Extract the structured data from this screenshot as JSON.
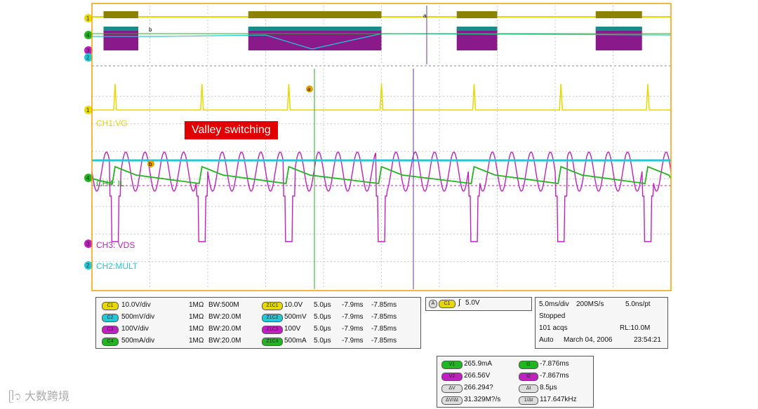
{
  "chart_data": {
    "type": "line",
    "annotation": "Valley switching",
    "cursor_labels": [
      "a",
      "b"
    ],
    "zoom_labels": [
      "a",
      "b"
    ],
    "channel_markers": [
      "1",
      "4",
      "3",
      "2"
    ],
    "channel_labels": [
      {
        "text": "CH1:VG",
        "color": "#e6d800"
      },
      {
        "text": "CH4: IL",
        "color": "#22b422"
      },
      {
        "text": "CH3: VDS",
        "color": "#c020c0"
      },
      {
        "text": "CH2:MULT",
        "color": "#20c8d8"
      }
    ],
    "colors": {
      "ch1": "#e6d800",
      "ch2": "#20c8d8",
      "ch3": "#c020c0",
      "ch4": "#22b422",
      "grid": "#c8c8c8",
      "frame": "#f0a000"
    },
    "overview_bursts": [
      {
        "start": 0.02,
        "end": 0.08
      },
      {
        "start": 0.27,
        "end": 0.5
      },
      {
        "start": 0.63,
        "end": 0.7
      },
      {
        "start": 0.87,
        "end": 0.95
      }
    ],
    "vg_pulse_positions": [
      0.04,
      0.19,
      0.34,
      0.5,
      0.66,
      0.81,
      0.96
    ],
    "vds_deep_valleys": [
      0.04,
      0.19,
      0.34,
      0.5,
      0.66,
      0.81,
      0.96
    ]
  },
  "channels": [
    {
      "badge": "C1",
      "badge_color": "#e6d800",
      "scale": "10.0V/div",
      "coupling": "1MΩ",
      "bw": "BW:500M",
      "zbadge": "Z1C1",
      "zscale": "10.0V",
      "ztime": "5.0μs",
      "zpos": "-7.9ms",
      "zpos2": "-7.85ms"
    },
    {
      "badge": "C2",
      "badge_color": "#20c8d8",
      "scale": "500mV/div",
      "coupling": "1MΩ",
      "bw": "BW:20.0M",
      "zbadge": "Z1C2",
      "zscale": "500mV",
      "ztime": "5.0μs",
      "zpos": "-7.9ms",
      "zpos2": "-7.85ms"
    },
    {
      "badge": "C3",
      "badge_color": "#c020c0",
      "scale": "100V/div",
      "coupling": "1MΩ",
      "bw": "BW:20.0M",
      "zbadge": "Z1C3",
      "zscale": "100V",
      "ztime": "5.0μs",
      "zpos": "-7.9ms",
      "zpos2": "-7.85ms"
    },
    {
      "badge": "C4",
      "badge_color": "#22b422",
      "scale": "500mA/div",
      "coupling": "1MΩ",
      "bw": "BW:20.0M",
      "zbadge": "Z1C4",
      "zscale": "500mA",
      "ztime": "5.0μs",
      "zpos": "-7.9ms",
      "zpos2": "-7.85ms"
    }
  ],
  "trigger": {
    "badge": "A",
    "source": "C1",
    "level": "5.0V"
  },
  "timebase": {
    "row1": [
      "5.0ms/div",
      "200MS/s",
      "5.0ns/pt"
    ],
    "status": "Stopped",
    "acqs": "101 acqs",
    "rl": "RL:10.0M",
    "mode": "Auto",
    "date": "March 04, 2006",
    "time": "23:54:21"
  },
  "cursors": [
    {
      "badge": "V1",
      "value": "265.9mA",
      "tbadge": "t1",
      "tvalue": "-7.876ms"
    },
    {
      "badge": "V2",
      "value": "266.56V",
      "tbadge": "t2",
      "tvalue": "-7.867ms"
    },
    {
      "badge": "ΔV",
      "value": "266.294?",
      "tbadge": "Δt",
      "tvalue": "8.5μs"
    },
    {
      "badge": "ΔV/Δt",
      "value": "31.329M?/s",
      "tbadge": "1/Δt",
      "tvalue": "117.647kHz"
    }
  ],
  "watermark": "大数跨境"
}
